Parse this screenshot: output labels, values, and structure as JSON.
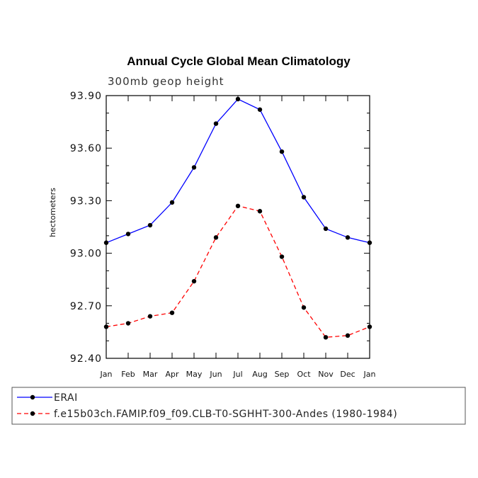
{
  "chart_data": {
    "type": "line",
    "title": "Annual Cycle Global Mean Climatology",
    "subtitle": "300mb geop height",
    "xlabel": "",
    "ylabel": "hectometers",
    "categories": [
      "Jan",
      "Feb",
      "Mar",
      "Apr",
      "May",
      "Jun",
      "Jul",
      "Aug",
      "Sep",
      "Oct",
      "Nov",
      "Dec",
      "Jan"
    ],
    "ylim": [
      92.4,
      93.9
    ],
    "yticks": [
      92.4,
      92.7,
      93.0,
      93.3,
      93.6,
      93.9
    ],
    "ytick_labels": [
      "92.40",
      "92.70",
      "93.00",
      "93.30",
      "93.60",
      "93.90"
    ],
    "series": [
      {
        "name": "ERAI",
        "color": "#0000ff",
        "dash": "solid",
        "values": [
          93.06,
          93.11,
          93.16,
          93.29,
          93.49,
          93.74,
          93.88,
          93.82,
          93.58,
          93.32,
          93.14,
          93.09,
          93.06
        ]
      },
      {
        "name": "f.e15b03ch.FAMIP.f09_f09.CLB-T0-SGHHT-300-Andes (1980-1984)",
        "color": "#ff0000",
        "dash": "dashed",
        "values": [
          92.58,
          92.6,
          92.64,
          92.66,
          92.84,
          93.09,
          93.27,
          93.24,
          92.98,
          92.69,
          92.52,
          92.53,
          92.58
        ]
      }
    ],
    "legend_position": "bottom-left"
  }
}
